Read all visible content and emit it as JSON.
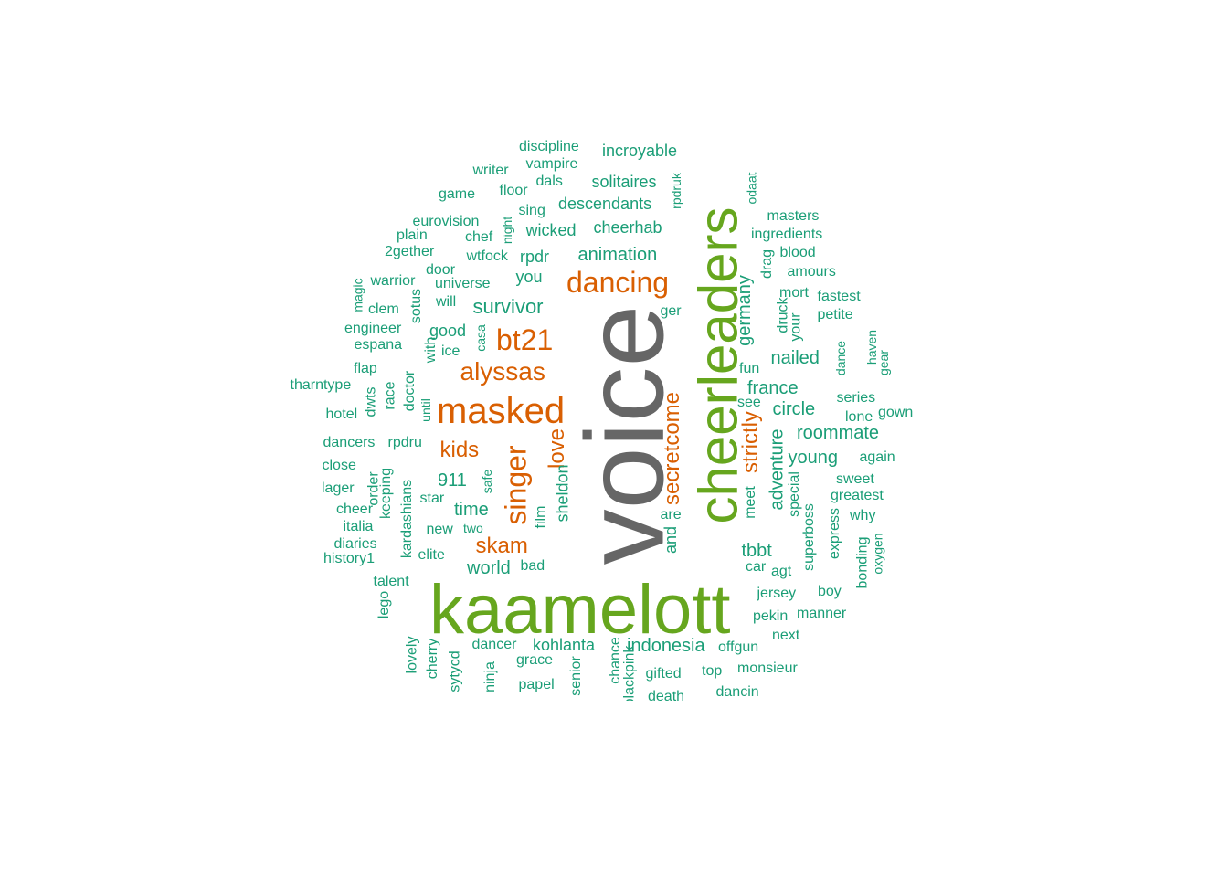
{
  "wordcloud": {
    "colors": {
      "gray": "#666666",
      "green": "#66a61e",
      "orange": "#d95f02",
      "teal": "#1b9e77"
    },
    "words": [
      {
        "text": "voice",
        "color": "gray",
        "rot": true
      },
      {
        "text": "kaamelott",
        "color": "green",
        "rot": false
      },
      {
        "text": "cheerleaders",
        "color": "green",
        "rot": true
      },
      {
        "text": "masked",
        "color": "orange",
        "rot": false
      },
      {
        "text": "dancing",
        "color": "orange",
        "rot": false
      },
      {
        "text": "singer",
        "color": "orange",
        "rot": true
      },
      {
        "text": "bt21",
        "color": "orange",
        "rot": false
      },
      {
        "text": "alyssas",
        "color": "orange",
        "rot": false
      },
      {
        "text": "secretcome",
        "color": "orange",
        "rot": true
      },
      {
        "text": "kids",
        "color": "orange",
        "rot": false
      },
      {
        "text": "skam",
        "color": "orange",
        "rot": false
      },
      {
        "text": "love",
        "color": "orange",
        "rot": true
      },
      {
        "text": "strictly",
        "color": "orange",
        "rot": true
      },
      {
        "text": "survivor",
        "color": "teal",
        "rot": false
      },
      {
        "text": "animation",
        "color": "teal",
        "rot": false
      },
      {
        "text": "911",
        "color": "teal",
        "rot": false
      },
      {
        "text": "time",
        "color": "teal",
        "rot": false
      },
      {
        "text": "world",
        "color": "teal",
        "rot": false
      },
      {
        "text": "tbbt",
        "color": "teal",
        "rot": false
      },
      {
        "text": "france",
        "color": "teal",
        "rot": false
      },
      {
        "text": "nailed",
        "color": "teal",
        "rot": false
      },
      {
        "text": "circle",
        "color": "teal",
        "rot": false
      },
      {
        "text": "roommate",
        "color": "teal",
        "rot": false
      },
      {
        "text": "young",
        "color": "teal",
        "rot": false
      },
      {
        "text": "adventure",
        "color": "teal",
        "rot": true
      },
      {
        "text": "germany",
        "color": "teal",
        "rot": true
      },
      {
        "text": "indonesia",
        "color": "teal",
        "rot": false
      },
      {
        "text": "kohlanta",
        "color": "teal",
        "rot": false
      },
      {
        "text": "descendants",
        "color": "teal",
        "rot": false
      },
      {
        "text": "rpdr",
        "color": "teal",
        "rot": false
      },
      {
        "text": "you",
        "color": "teal",
        "rot": false
      },
      {
        "text": "good",
        "color": "teal",
        "rot": false
      },
      {
        "text": "sheldon",
        "color": "teal",
        "rot": true
      },
      {
        "text": "and",
        "color": "teal",
        "rot": true
      },
      {
        "text": "wicked",
        "color": "teal",
        "rot": false
      },
      {
        "text": "cheerhab",
        "color": "teal",
        "rot": false
      },
      {
        "text": "solitaires",
        "color": "teal",
        "rot": false
      },
      {
        "text": "incroyable",
        "color": "teal",
        "rot": false
      },
      {
        "text": "universe",
        "color": "teal",
        "rot": false
      },
      {
        "text": "wtfock",
        "color": "teal",
        "rot": false
      },
      {
        "text": "special",
        "color": "teal",
        "rot": true
      },
      {
        "text": "superboss",
        "color": "teal",
        "rot": true
      },
      {
        "text": "jersey",
        "color": "teal",
        "rot": false
      },
      {
        "text": "pekin",
        "color": "teal",
        "rot": false
      },
      {
        "text": "gifted",
        "color": "teal",
        "rot": false
      },
      {
        "text": "rpdru",
        "color": "teal",
        "rot": false
      },
      {
        "text": "dancers",
        "color": "teal",
        "rot": false
      },
      {
        "text": "kardashians",
        "color": "teal",
        "rot": true
      },
      {
        "text": "keeping",
        "color": "teal",
        "rot": true
      },
      {
        "text": "star",
        "color": "teal",
        "rot": false
      },
      {
        "text": "new",
        "color": "teal",
        "rot": false
      },
      {
        "text": "elite",
        "color": "teal",
        "rot": false
      },
      {
        "text": "talent",
        "color": "teal",
        "rot": false
      },
      {
        "text": "dancer",
        "color": "teal",
        "rot": false
      },
      {
        "text": "grace",
        "color": "teal",
        "rot": false
      },
      {
        "text": "papel",
        "color": "teal",
        "rot": false
      },
      {
        "text": "bad",
        "color": "teal",
        "rot": false
      },
      {
        "text": "film",
        "color": "teal",
        "rot": true
      },
      {
        "text": "meet",
        "color": "teal",
        "rot": true
      },
      {
        "text": "agt",
        "color": "teal",
        "rot": false
      },
      {
        "text": "car",
        "color": "teal",
        "rot": false
      },
      {
        "text": "boy",
        "color": "teal",
        "rot": false
      },
      {
        "text": "manner",
        "color": "teal",
        "rot": false
      },
      {
        "text": "next",
        "color": "teal",
        "rot": false
      },
      {
        "text": "offgun",
        "color": "teal",
        "rot": false
      },
      {
        "text": "monsieur",
        "color": "teal",
        "rot": false
      },
      {
        "text": "top",
        "color": "teal",
        "rot": false
      },
      {
        "text": "dancin",
        "color": "teal",
        "rot": false
      },
      {
        "text": "death",
        "color": "teal",
        "rot": false
      },
      {
        "text": "chance",
        "color": "teal",
        "rot": true
      },
      {
        "text": "blackpink",
        "color": "teal",
        "rot": true
      },
      {
        "text": "senior",
        "color": "teal",
        "rot": true
      },
      {
        "text": "ninja",
        "color": "teal",
        "rot": true
      },
      {
        "text": "sytycd",
        "color": "teal",
        "rot": true
      },
      {
        "text": "cherry",
        "color": "teal",
        "rot": true
      },
      {
        "text": "lovely",
        "color": "teal",
        "rot": true
      },
      {
        "text": "lego",
        "color": "teal",
        "rot": true
      },
      {
        "text": "history1",
        "color": "teal",
        "rot": false
      },
      {
        "text": "diaries",
        "color": "teal",
        "rot": false
      },
      {
        "text": "italia",
        "color": "teal",
        "rot": false
      },
      {
        "text": "cheer",
        "color": "teal",
        "rot": false
      },
      {
        "text": "lager",
        "color": "teal",
        "rot": false
      },
      {
        "text": "close",
        "color": "teal",
        "rot": false
      },
      {
        "text": "order",
        "color": "teal",
        "rot": true
      },
      {
        "text": "two",
        "color": "teal",
        "rot": false
      },
      {
        "text": "safe",
        "color": "teal",
        "rot": true
      },
      {
        "text": "hotel",
        "color": "teal",
        "rot": false
      },
      {
        "text": "dwts",
        "color": "teal",
        "rot": true
      },
      {
        "text": "race",
        "color": "teal",
        "rot": true
      },
      {
        "text": "doctor",
        "color": "teal",
        "rot": true
      },
      {
        "text": "until",
        "color": "teal",
        "rot": true
      },
      {
        "text": "tharntype",
        "color": "teal",
        "rot": false
      },
      {
        "text": "flap",
        "color": "teal",
        "rot": false
      },
      {
        "text": "espana",
        "color": "teal",
        "rot": false
      },
      {
        "text": "engineer",
        "color": "teal",
        "rot": false
      },
      {
        "text": "clem",
        "color": "teal",
        "rot": false
      },
      {
        "text": "magic",
        "color": "teal",
        "rot": true
      },
      {
        "text": "warrior",
        "color": "teal",
        "rot": false
      },
      {
        "text": "sotus",
        "color": "teal",
        "rot": true
      },
      {
        "text": "with",
        "color": "teal",
        "rot": true
      },
      {
        "text": "ice",
        "color": "teal",
        "rot": false
      },
      {
        "text": "casa",
        "color": "teal",
        "rot": true
      },
      {
        "text": "will",
        "color": "teal",
        "rot": false
      },
      {
        "text": "door",
        "color": "teal",
        "rot": false
      },
      {
        "text": "2gether",
        "color": "teal",
        "rot": false
      },
      {
        "text": "plain",
        "color": "teal",
        "rot": false
      },
      {
        "text": "eurovision",
        "color": "teal",
        "rot": false
      },
      {
        "text": "chef",
        "color": "teal",
        "rot": false
      },
      {
        "text": "night",
        "color": "teal",
        "rot": true
      },
      {
        "text": "sing",
        "color": "teal",
        "rot": false
      },
      {
        "text": "game",
        "color": "teal",
        "rot": false
      },
      {
        "text": "floor",
        "color": "teal",
        "rot": false
      },
      {
        "text": "dals",
        "color": "teal",
        "rot": false
      },
      {
        "text": "writer",
        "color": "teal",
        "rot": false
      },
      {
        "text": "vampire",
        "color": "teal",
        "rot": false
      },
      {
        "text": "discipline",
        "color": "teal",
        "rot": false
      },
      {
        "text": "rpdruk",
        "color": "teal",
        "rot": true
      },
      {
        "text": "odaat",
        "color": "teal",
        "rot": true
      },
      {
        "text": "masters",
        "color": "teal",
        "rot": false
      },
      {
        "text": "ingredients",
        "color": "teal",
        "rot": false
      },
      {
        "text": "blood",
        "color": "teal",
        "rot": false
      },
      {
        "text": "drag",
        "color": "teal",
        "rot": true
      },
      {
        "text": "amours",
        "color": "teal",
        "rot": false
      },
      {
        "text": "mort",
        "color": "teal",
        "rot": false
      },
      {
        "text": "fastest",
        "color": "teal",
        "rot": false
      },
      {
        "text": "druck",
        "color": "teal",
        "rot": true
      },
      {
        "text": "your",
        "color": "teal",
        "rot": true
      },
      {
        "text": "petite",
        "color": "teal",
        "rot": false
      },
      {
        "text": "ger",
        "color": "teal",
        "rot": false
      },
      {
        "text": "fun",
        "color": "teal",
        "rot": false
      },
      {
        "text": "see",
        "color": "teal",
        "rot": false
      },
      {
        "text": "dance",
        "color": "teal",
        "rot": true
      },
      {
        "text": "haven",
        "color": "teal",
        "rot": true
      },
      {
        "text": "gear",
        "color": "teal",
        "rot": true
      },
      {
        "text": "series",
        "color": "teal",
        "rot": false
      },
      {
        "text": "lone",
        "color": "teal",
        "rot": false
      },
      {
        "text": "gown",
        "color": "teal",
        "rot": false
      },
      {
        "text": "again",
        "color": "teal",
        "rot": false
      },
      {
        "text": "sweet",
        "color": "teal",
        "rot": false
      },
      {
        "text": "greatest",
        "color": "teal",
        "rot": false
      },
      {
        "text": "why",
        "color": "teal",
        "rot": false
      },
      {
        "text": "express",
        "color": "teal",
        "rot": true
      },
      {
        "text": "bonding",
        "color": "teal",
        "rot": true
      },
      {
        "text": "oxygen",
        "color": "teal",
        "rot": true
      },
      {
        "text": "are",
        "color": "teal",
        "rot": false
      }
    ]
  }
}
